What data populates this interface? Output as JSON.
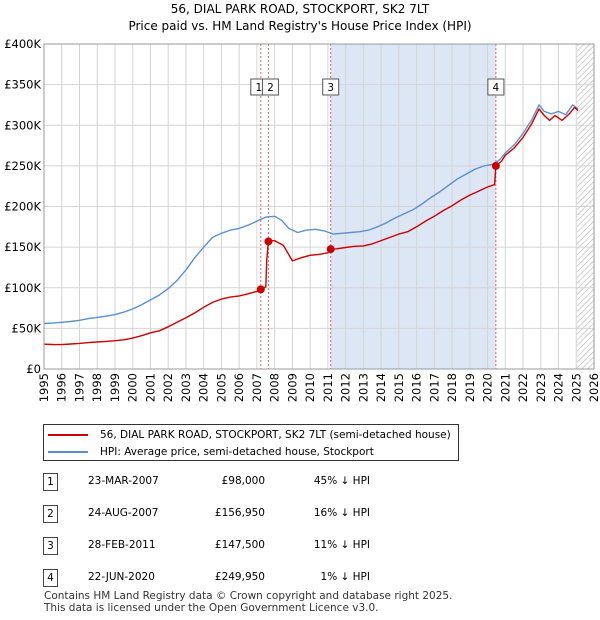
{
  "chart_data": {
    "type": "line",
    "title": "56, DIAL PARK ROAD, STOCKPORT, SK2 7LT",
    "subtitle": "Price paid vs. HM Land Registry's House Price Index (HPI)",
    "xlim": [
      1995,
      2026
    ],
    "ylim": [
      0,
      400000
    ],
    "x_ticks": [
      "1995",
      "1996",
      "1997",
      "1998",
      "1999",
      "2000",
      "2001",
      "2002",
      "2003",
      "2004",
      "2005",
      "2006",
      "2007",
      "2008",
      "2009",
      "2010",
      "2011",
      "2012",
      "2013",
      "2014",
      "2015",
      "2016",
      "2017",
      "2018",
      "2019",
      "2020",
      "2021",
      "2022",
      "2023",
      "2024",
      "2025",
      "2026"
    ],
    "y_ticks": [
      {
        "value": 0,
        "label": "£0"
      },
      {
        "value": 50000,
        "label": "£50K"
      },
      {
        "value": 100000,
        "label": "£100K"
      },
      {
        "value": 150000,
        "label": "£150K"
      },
      {
        "value": 200000,
        "label": "£200K"
      },
      {
        "value": 250000,
        "label": "£250K"
      },
      {
        "value": 300000,
        "label": "£300K"
      },
      {
        "value": 350000,
        "label": "£350K"
      },
      {
        "value": 400000,
        "label": "£400K"
      }
    ],
    "shaded_region": [
      2011.16,
      2020.47
    ],
    "forecast_from": 2025.05,
    "colors": {
      "property": "#cc0000",
      "hpi": "#5b8fcf",
      "shade": "#dce6f5",
      "marker_line": "#e06060"
    },
    "series": [
      {
        "name": "56, DIAL PARK ROAD, STOCKPORT, SK2 7LT (semi-detached house)",
        "color": "#cc0000",
        "points": [
          [
            1995.0,
            30500
          ],
          [
            1995.5,
            30200
          ],
          [
            1996.0,
            30000
          ],
          [
            1996.5,
            30800
          ],
          [
            1997.0,
            31500
          ],
          [
            1997.5,
            32500
          ],
          [
            1998.0,
            33200
          ],
          [
            1998.5,
            34000
          ],
          [
            1999.0,
            34800
          ],
          [
            1999.5,
            36000
          ],
          [
            2000.0,
            38000
          ],
          [
            2000.5,
            41000
          ],
          [
            2001.0,
            44500
          ],
          [
            2001.5,
            47000
          ],
          [
            2002.0,
            52000
          ],
          [
            2002.5,
            57500
          ],
          [
            2003.0,
            63000
          ],
          [
            2003.5,
            69000
          ],
          [
            2004.0,
            76000
          ],
          [
            2004.5,
            82000
          ],
          [
            2005.0,
            86000
          ],
          [
            2005.5,
            88500
          ],
          [
            2006.0,
            90000
          ],
          [
            2006.5,
            92500
          ],
          [
            2007.0,
            95500
          ],
          [
            2007.22,
            98000
          ],
          [
            2007.5,
            101000
          ],
          [
            2007.56,
            135000
          ],
          [
            2007.65,
            156950
          ],
          [
            2008.0,
            158000
          ],
          [
            2008.5,
            152000
          ],
          [
            2009.0,
            133000
          ],
          [
            2009.5,
            137000
          ],
          [
            2010.0,
            140000
          ],
          [
            2010.5,
            141000
          ],
          [
            2011.0,
            143000
          ],
          [
            2011.16,
            147500
          ],
          [
            2011.5,
            148000
          ],
          [
            2012.0,
            149500
          ],
          [
            2012.5,
            151000
          ],
          [
            2013.0,
            151500
          ],
          [
            2013.5,
            154000
          ],
          [
            2014.0,
            158000
          ],
          [
            2014.5,
            162000
          ],
          [
            2015.0,
            166000
          ],
          [
            2015.5,
            169000
          ],
          [
            2016.0,
            175000
          ],
          [
            2016.5,
            182000
          ],
          [
            2017.0,
            188000
          ],
          [
            2017.5,
            195000
          ],
          [
            2018.0,
            201000
          ],
          [
            2018.5,
            208000
          ],
          [
            2019.0,
            214000
          ],
          [
            2019.5,
            219000
          ],
          [
            2020.0,
            224000
          ],
          [
            2020.4,
            227000
          ],
          [
            2020.47,
            249950
          ],
          [
            2020.8,
            256000
          ],
          [
            2021.0,
            263000
          ],
          [
            2021.5,
            272000
          ],
          [
            2022.0,
            285000
          ],
          [
            2022.5,
            302000
          ],
          [
            2022.9,
            320000
          ],
          [
            2023.2,
            312000
          ],
          [
            2023.5,
            306000
          ],
          [
            2023.8,
            312000
          ],
          [
            2024.2,
            306000
          ],
          [
            2024.6,
            314000
          ],
          [
            2024.9,
            322000
          ],
          [
            2025.1,
            318000
          ]
        ]
      },
      {
        "name": "HPI: Average price, semi-detached house, Stockport",
        "color": "#5b8fcf",
        "points": [
          [
            1995.0,
            56000
          ],
          [
            1995.5,
            56500
          ],
          [
            1996.0,
            57500
          ],
          [
            1996.5,
            58500
          ],
          [
            1997.0,
            60000
          ],
          [
            1997.5,
            62000
          ],
          [
            1998.0,
            63500
          ],
          [
            1998.5,
            65000
          ],
          [
            1999.0,
            67000
          ],
          [
            1999.5,
            70000
          ],
          [
            2000.0,
            74000
          ],
          [
            2000.5,
            79000
          ],
          [
            2001.0,
            85000
          ],
          [
            2001.5,
            91000
          ],
          [
            2002.0,
            99000
          ],
          [
            2002.5,
            109000
          ],
          [
            2003.0,
            122000
          ],
          [
            2003.5,
            137000
          ],
          [
            2004.0,
            150000
          ],
          [
            2004.5,
            162000
          ],
          [
            2005.0,
            167000
          ],
          [
            2005.5,
            171000
          ],
          [
            2006.0,
            173000
          ],
          [
            2006.5,
            177000
          ],
          [
            2007.0,
            182000
          ],
          [
            2007.5,
            187000
          ],
          [
            2008.0,
            188000
          ],
          [
            2008.4,
            183000
          ],
          [
            2008.8,
            173000
          ],
          [
            2009.3,
            168000
          ],
          [
            2009.8,
            171000
          ],
          [
            2010.3,
            172000
          ],
          [
            2010.8,
            170000
          ],
          [
            2011.3,
            166000
          ],
          [
            2011.8,
            167000
          ],
          [
            2012.3,
            168000
          ],
          [
            2012.8,
            169000
          ],
          [
            2013.3,
            171000
          ],
          [
            2013.8,
            175000
          ],
          [
            2014.3,
            180000
          ],
          [
            2014.8,
            186000
          ],
          [
            2015.3,
            191000
          ],
          [
            2015.8,
            196000
          ],
          [
            2016.3,
            203000
          ],
          [
            2016.8,
            211000
          ],
          [
            2017.3,
            218000
          ],
          [
            2017.8,
            226000
          ],
          [
            2018.3,
            234000
          ],
          [
            2018.8,
            240000
          ],
          [
            2019.3,
            246000
          ],
          [
            2019.8,
            250000
          ],
          [
            2020.3,
            252000
          ],
          [
            2020.7,
            258000
          ],
          [
            2021.0,
            266000
          ],
          [
            2021.5,
            276000
          ],
          [
            2022.0,
            290000
          ],
          [
            2022.5,
            307000
          ],
          [
            2022.9,
            325000
          ],
          [
            2023.2,
            317000
          ],
          [
            2023.6,
            314000
          ],
          [
            2024.0,
            317000
          ],
          [
            2024.4,
            313000
          ],
          [
            2024.8,
            325000
          ],
          [
            2025.1,
            320000
          ]
        ]
      }
    ],
    "markers": [
      {
        "id": "1",
        "x": 2007.22,
        "value": 98000
      },
      {
        "id": "2",
        "x": 2007.65,
        "value": 156950
      },
      {
        "id": "3",
        "x": 2011.16,
        "value": 147500
      },
      {
        "id": "4",
        "x": 2020.47,
        "value": 249950
      }
    ]
  },
  "legend": {
    "property_label": "56, DIAL PARK ROAD, STOCKPORT, SK2 7LT (semi-detached house)",
    "hpi_label": "HPI: Average price, semi-detached house, Stockport"
  },
  "sales": [
    {
      "id": "1",
      "date": "23-MAR-2007",
      "price": "£98,000",
      "hpi": "45% ↓ HPI"
    },
    {
      "id": "2",
      "date": "24-AUG-2007",
      "price": "£156,950",
      "hpi": "16% ↓ HPI"
    },
    {
      "id": "3",
      "date": "28-FEB-2011",
      "price": "£147,500",
      "hpi": "11% ↓ HPI"
    },
    {
      "id": "4",
      "date": "22-JUN-2020",
      "price": "£249,950",
      "hpi": "1% ↓ HPI"
    }
  ],
  "footer": {
    "line1": "Contains HM Land Registry data © Crown copyright and database right 2025.",
    "line2": "This data is licensed under the Open Government Licence v3.0."
  }
}
